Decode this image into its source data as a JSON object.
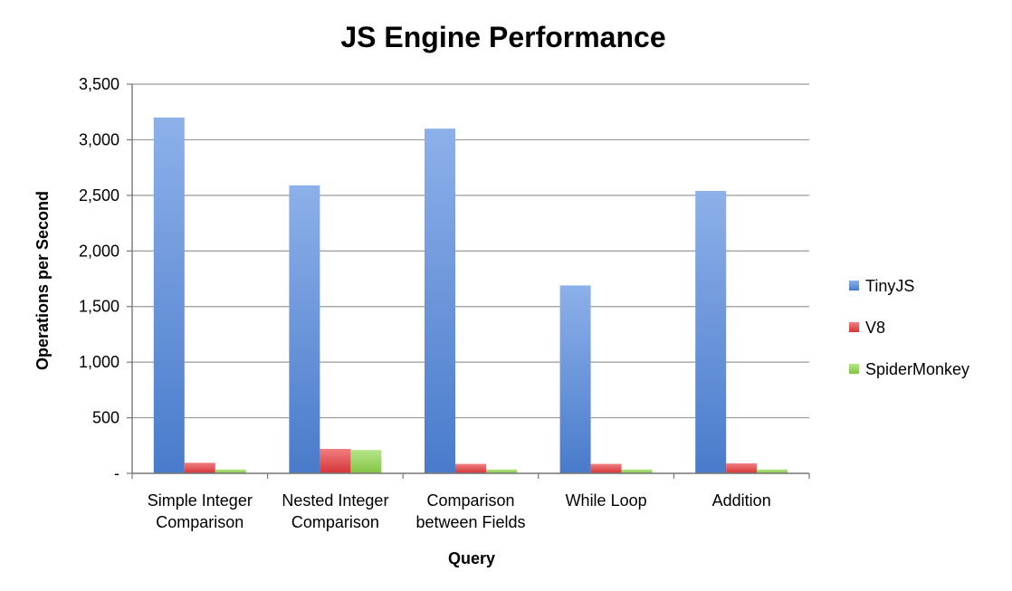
{
  "chart_data": {
    "type": "bar",
    "title": "JS Engine Performance",
    "xlabel": "Query",
    "ylabel": "Operations per Second",
    "categories": [
      [
        "Simple Integer",
        "Comparison"
      ],
      [
        "Nested Integer",
        "Comparison"
      ],
      [
        "Comparison",
        "between Fields"
      ],
      [
        "While Loop"
      ],
      [
        "Addition"
      ]
    ],
    "series": [
      {
        "name": "TinyJS",
        "values": [
          3200,
          2590,
          3100,
          1690,
          2540
        ],
        "color": "#4f86dd"
      },
      {
        "name": "V8",
        "values": [
          95,
          220,
          85,
          85,
          90
        ],
        "color": "#e8393c"
      },
      {
        "name": "SpiderMonkey",
        "values": [
          35,
          210,
          35,
          35,
          35
        ],
        "color": "#8ed64a"
      }
    ],
    "ylim": [
      0,
      3500
    ],
    "yticks": [
      {
        "value": 0,
        "label": "-"
      },
      {
        "value": 500,
        "label": "500"
      },
      {
        "value": 1000,
        "label": "1,000"
      },
      {
        "value": 1500,
        "label": "1,500"
      },
      {
        "value": 2000,
        "label": "2,000"
      },
      {
        "value": 2500,
        "label": "2,500"
      },
      {
        "value": 3000,
        "label": "3,000"
      },
      {
        "value": 3500,
        "label": "3,500"
      }
    ],
    "grid": true,
    "legend_position": "right"
  }
}
